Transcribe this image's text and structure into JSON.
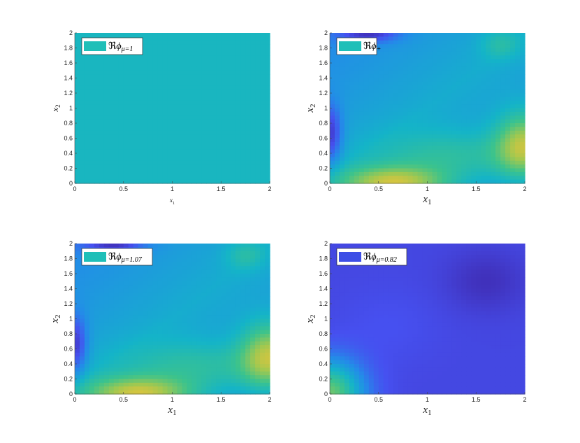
{
  "chart_data": [
    {
      "type": "heatmap",
      "field": "const",
      "legend_color": "#1fbfb8",
      "legend": {
        "re": "ℜ",
        "phi": "ϕ",
        "sub": "μ=1"
      },
      "xlabel": {
        "main": "x",
        "sub": "1"
      },
      "ylabel": {
        "main": "x",
        "sub": "2"
      },
      "xlim": [
        0,
        2
      ],
      "ylim": [
        0,
        2
      ],
      "xticks": [
        "0",
        "0.5",
        "1",
        "1.5",
        "2"
      ],
      "yticks": [
        "0",
        "0.2",
        "0.4",
        "0.6",
        "0.8",
        "1",
        "1.2",
        "1.4",
        "1.6",
        "1.8",
        "2"
      ]
    },
    {
      "type": "heatmap",
      "field": "plus",
      "legend_color": "#1fbfb8",
      "legend": {
        "re": "ℜ",
        "phi": "ϕ",
        "sub": "+"
      },
      "xlabel": {
        "main": "x",
        "sub": "1"
      },
      "ylabel": {
        "main": "x",
        "sub": "2"
      },
      "xlim": [
        0,
        2
      ],
      "ylim": [
        0,
        2
      ],
      "xticks": [
        "0",
        "0.5",
        "1",
        "1.5",
        "2"
      ],
      "yticks": [
        "0",
        "0.2",
        "0.4",
        "0.6",
        "0.8",
        "1",
        "1.2",
        "1.4",
        "1.6",
        "1.8",
        "2"
      ]
    },
    {
      "type": "heatmap",
      "field": "plus",
      "legend_color": "#1fbfb8",
      "legend": {
        "re": "ℜ",
        "phi": "ϕ",
        "sub": "μ=1.07"
      },
      "xlabel": {
        "main": "x",
        "sub": "1"
      },
      "ylabel": {
        "main": "x",
        "sub": "2"
      },
      "xlim": [
        0,
        2
      ],
      "ylim": [
        0,
        2
      ],
      "xticks": [
        "0",
        "0.5",
        "1",
        "1.5",
        "2"
      ],
      "yticks": [
        "0",
        "0.2",
        "0.4",
        "0.6",
        "0.8",
        "1",
        "1.2",
        "1.4",
        "1.6",
        "1.8",
        "2"
      ]
    },
    {
      "type": "heatmap",
      "field": "low",
      "legend_color": "#3d4ee6",
      "legend": {
        "re": "ℜ",
        "phi": "ϕ",
        "sub": "μ=0.82"
      },
      "xlabel": {
        "main": "x",
        "sub": "1"
      },
      "ylabel": {
        "main": "x",
        "sub": "2"
      },
      "xlim": [
        0,
        2
      ],
      "ylim": [
        0,
        2
      ],
      "xticks": [
        "0",
        "0.5",
        "1",
        "1.5",
        "2"
      ],
      "yticks": [
        "0",
        "0.2",
        "0.4",
        "0.6",
        "0.8",
        "1",
        "1.2",
        "1.4",
        "1.6",
        "1.8",
        "2"
      ]
    }
  ]
}
